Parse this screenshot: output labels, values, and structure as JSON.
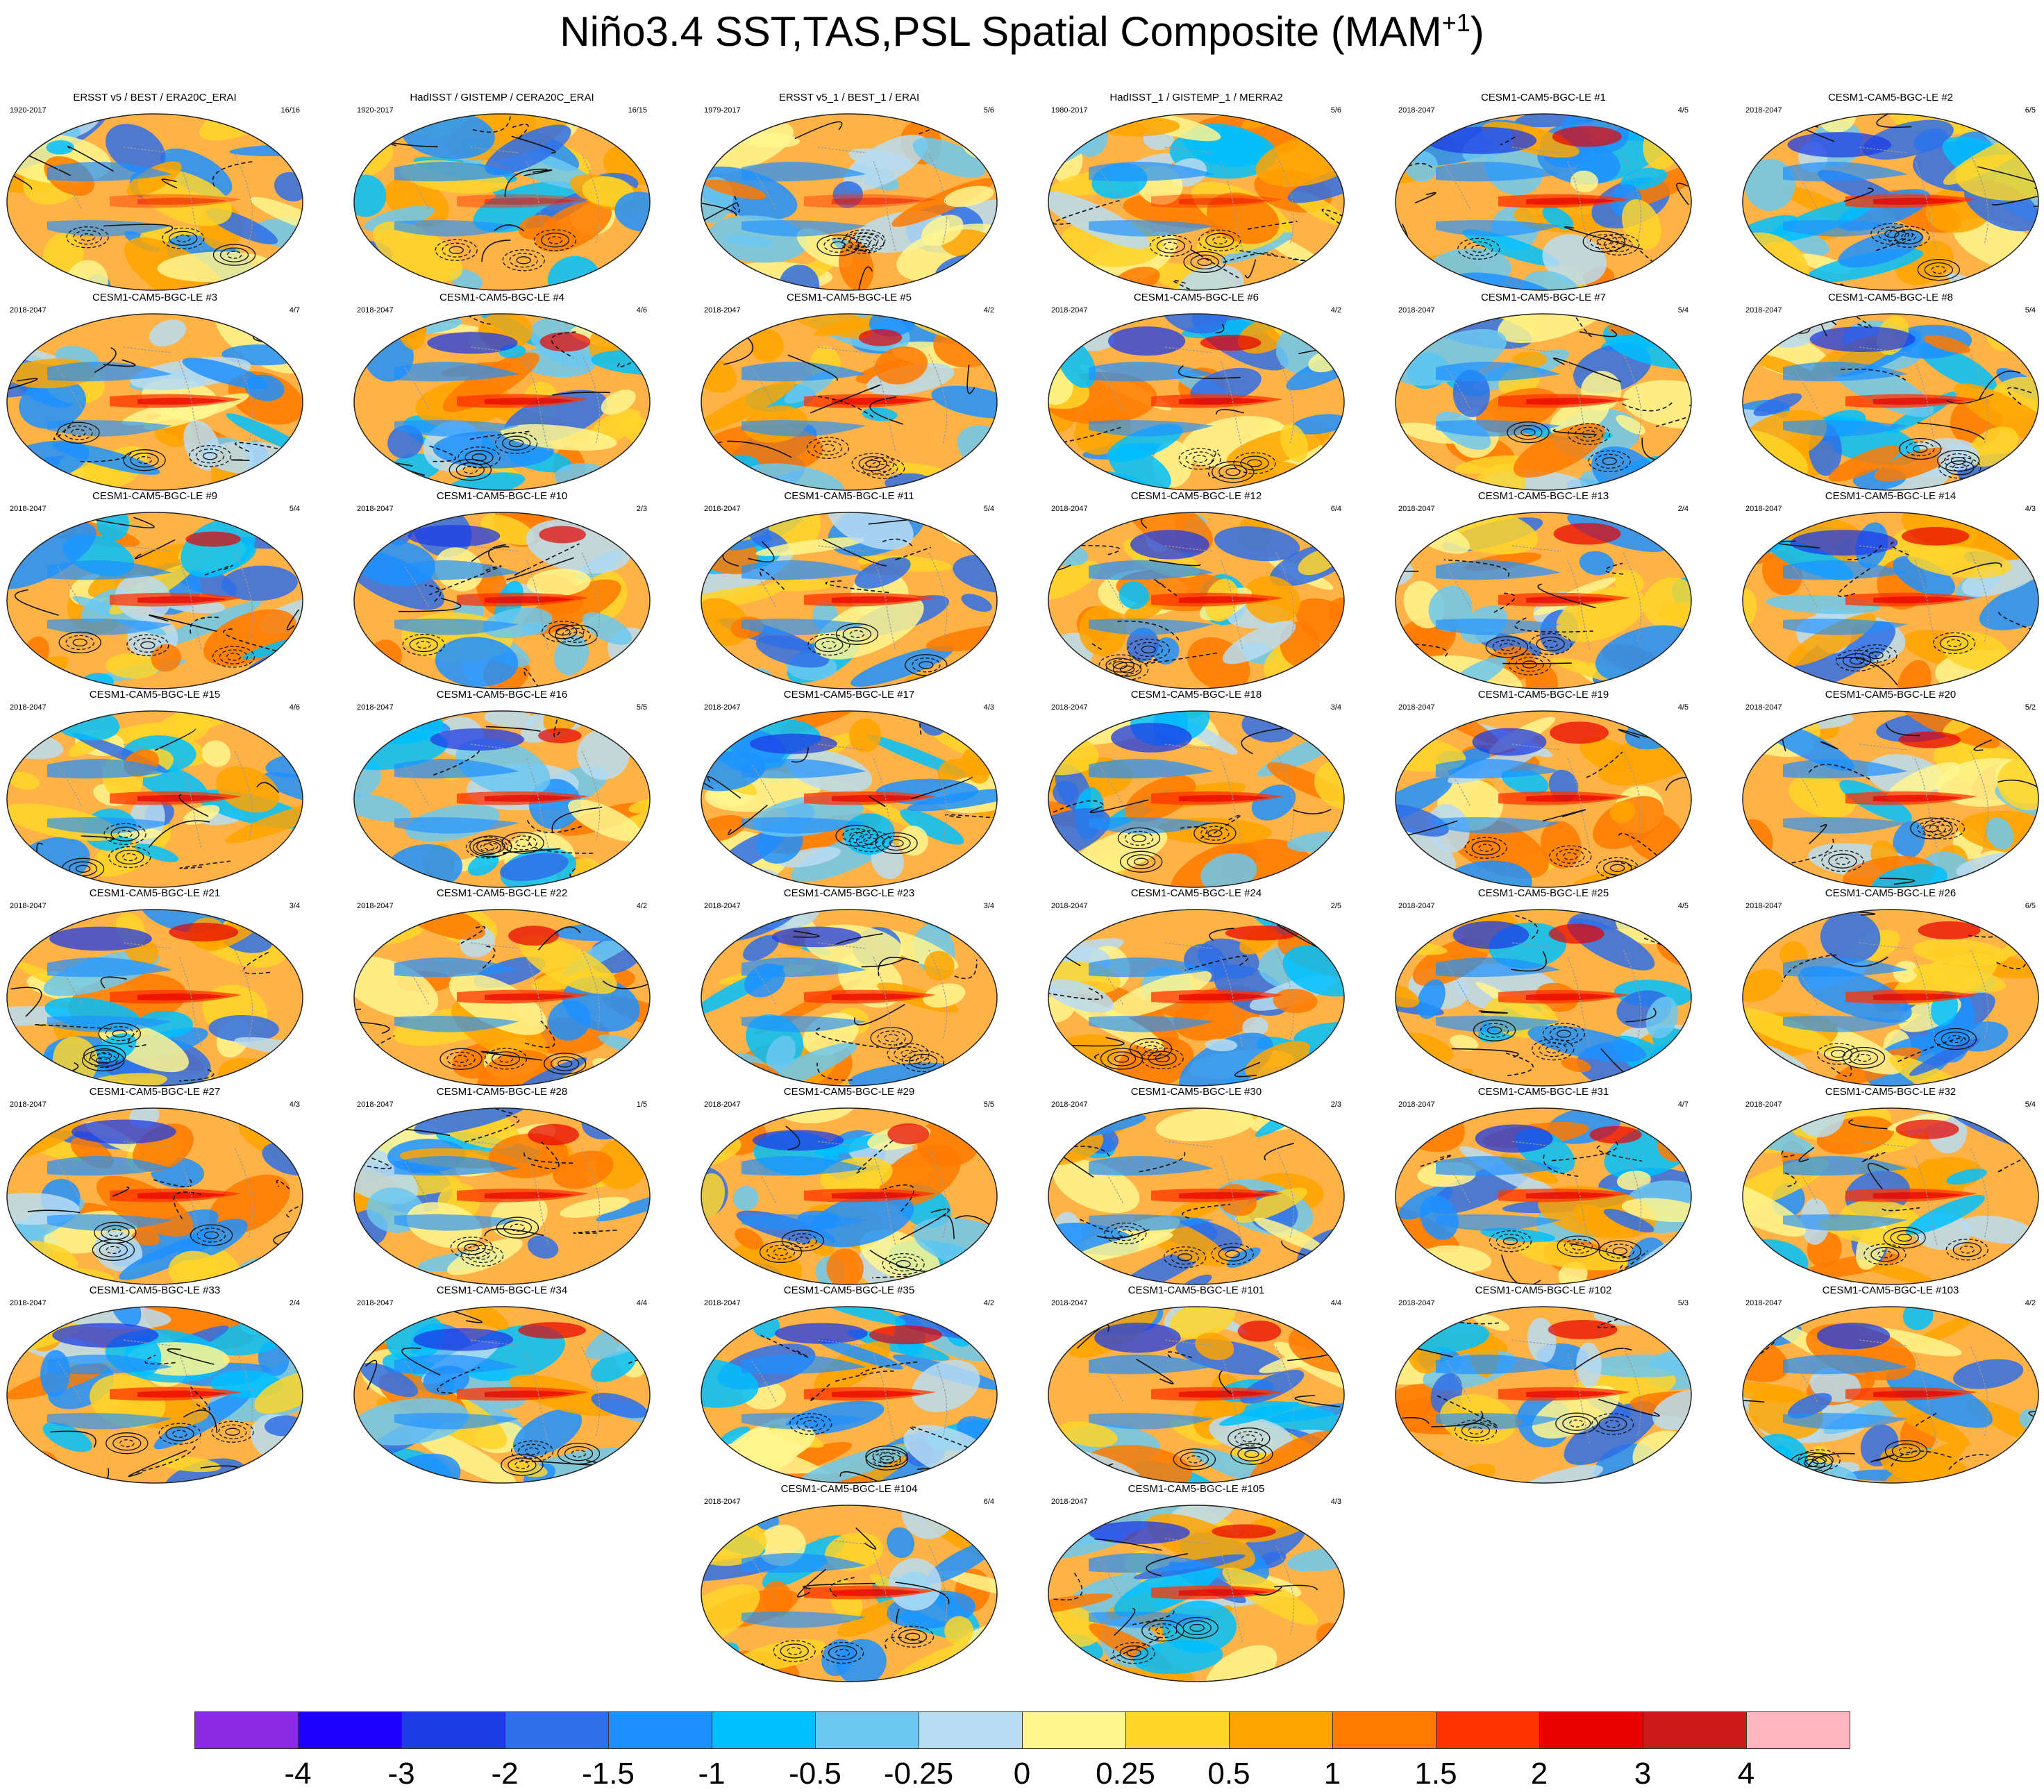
{
  "title": {
    "main": "Niño3.4 SST,TAS,PSL Spatial Composite (MAM",
    "superscript": "+1",
    "close": ")"
  },
  "panels": [
    {
      "title": "ERSST v5 / BEST / ERA20C_ERAI",
      "period": "1920-2017",
      "count": "16/16"
    },
    {
      "title": "HadISST / GISTEMP / CERA20C_ERAI",
      "period": "1920-2017",
      "count": "16/15"
    },
    {
      "title": "ERSST v5_1 / BEST_1 / ERAI",
      "period": "1979-2017",
      "count": "5/6"
    },
    {
      "title": "HadISST_1 / GISTEMP_1 / MERRA2",
      "period": "1980-2017",
      "count": "5/6"
    },
    {
      "title": "CESM1-CAM5-BGC-LE #1",
      "period": "2018-2047",
      "count": "4/5"
    },
    {
      "title": "CESM1-CAM5-BGC-LE #2",
      "period": "2018-2047",
      "count": "6/5"
    },
    {
      "title": "CESM1-CAM5-BGC-LE #3",
      "period": "2018-2047",
      "count": "4/7"
    },
    {
      "title": "CESM1-CAM5-BGC-LE #4",
      "period": "2018-2047",
      "count": "4/6"
    },
    {
      "title": "CESM1-CAM5-BGC-LE #5",
      "period": "2018-2047",
      "count": "4/2"
    },
    {
      "title": "CESM1-CAM5-BGC-LE #6",
      "period": "2018-2047",
      "count": "4/2"
    },
    {
      "title": "CESM1-CAM5-BGC-LE #7",
      "period": "2018-2047",
      "count": "5/4"
    },
    {
      "title": "CESM1-CAM5-BGC-LE #8",
      "period": "2018-2047",
      "count": "5/4"
    },
    {
      "title": "CESM1-CAM5-BGC-LE #9",
      "period": "2018-2047",
      "count": "5/4"
    },
    {
      "title": "CESM1-CAM5-BGC-LE #10",
      "period": "2018-2047",
      "count": "2/3"
    },
    {
      "title": "CESM1-CAM5-BGC-LE #11",
      "period": "2018-2047",
      "count": "5/4"
    },
    {
      "title": "CESM1-CAM5-BGC-LE #12",
      "period": "2018-2047",
      "count": "6/4"
    },
    {
      "title": "CESM1-CAM5-BGC-LE #13",
      "period": "2018-2047",
      "count": "2/4"
    },
    {
      "title": "CESM1-CAM5-BGC-LE #14",
      "period": "2018-2047",
      "count": "4/3"
    },
    {
      "title": "CESM1-CAM5-BGC-LE #15",
      "period": "2018-2047",
      "count": "4/6"
    },
    {
      "title": "CESM1-CAM5-BGC-LE #16",
      "period": "2018-2047",
      "count": "5/5"
    },
    {
      "title": "CESM1-CAM5-BGC-LE #17",
      "period": "2018-2047",
      "count": "4/3"
    },
    {
      "title": "CESM1-CAM5-BGC-LE #18",
      "period": "2018-2047",
      "count": "3/4"
    },
    {
      "title": "CESM1-CAM5-BGC-LE #19",
      "period": "2018-2047",
      "count": "4/5"
    },
    {
      "title": "CESM1-CAM5-BGC-LE #20",
      "period": "2018-2047",
      "count": "5/2"
    },
    {
      "title": "CESM1-CAM5-BGC-LE #21",
      "period": "2018-2047",
      "count": "3/4"
    },
    {
      "title": "CESM1-CAM5-BGC-LE #22",
      "period": "2018-2047",
      "count": "4/2"
    },
    {
      "title": "CESM1-CAM5-BGC-LE #23",
      "period": "2018-2047",
      "count": "3/4"
    },
    {
      "title": "CESM1-CAM5-BGC-LE #24",
      "period": "2018-2047",
      "count": "2/5"
    },
    {
      "title": "CESM1-CAM5-BGC-LE #25",
      "period": "2018-2047",
      "count": "4/5"
    },
    {
      "title": "CESM1-CAM5-BGC-LE #26",
      "period": "2018-2047",
      "count": "6/5"
    },
    {
      "title": "CESM1-CAM5-BGC-LE #27",
      "period": "2018-2047",
      "count": "4/3"
    },
    {
      "title": "CESM1-CAM5-BGC-LE #28",
      "period": "2018-2047",
      "count": "1/5"
    },
    {
      "title": "CESM1-CAM5-BGC-LE #29",
      "period": "2018-2047",
      "count": "5/5"
    },
    {
      "title": "CESM1-CAM5-BGC-LE #30",
      "period": "2018-2047",
      "count": "2/3"
    },
    {
      "title": "CESM1-CAM5-BGC-LE #31",
      "period": "2018-2047",
      "count": "4/7"
    },
    {
      "title": "CESM1-CAM5-BGC-LE #32",
      "period": "2018-2047",
      "count": "5/4"
    },
    {
      "title": "CESM1-CAM5-BGC-LE #33",
      "period": "2018-2047",
      "count": "2/4"
    },
    {
      "title": "CESM1-CAM5-BGC-LE #34",
      "period": "2018-2047",
      "count": "4/4"
    },
    {
      "title": "CESM1-CAM5-BGC-LE #35",
      "period": "2018-2047",
      "count": "4/2"
    },
    {
      "title": "CESM1-CAM5-BGC-LE #101",
      "period": "2018-2047",
      "count": "4/4"
    },
    {
      "title": "CESM1-CAM5-BGC-LE #102",
      "period": "2018-2047",
      "count": "5/3"
    },
    {
      "title": "CESM1-CAM5-BGC-LE #103",
      "period": "2018-2047",
      "count": "4/2"
    },
    {
      "title": "CESM1-CAM5-BGC-LE #104",
      "period": "2018-2047",
      "count": "6/4"
    },
    {
      "title": "CESM1-CAM5-BGC-LE #105",
      "period": "2018-2047",
      "count": "4/3"
    }
  ],
  "colorbar": {
    "colors": [
      "#8a2be2",
      "#1e00ff",
      "#1e3ce6",
      "#2f6fe8",
      "#1e90ff",
      "#00bfff",
      "#6cc8f0",
      "#b8dcf2",
      "#fff68f",
      "#ffd52a",
      "#ffa500",
      "#ff7a00",
      "#ff3300",
      "#e60000",
      "#cc1a1a",
      "#ffb6c1"
    ],
    "labels": [
      "-4",
      "-3",
      "-2",
      "-1.5",
      "-1",
      "-0.5",
      "-0.25",
      "0",
      "0.25",
      "0.5",
      "1",
      "1.5",
      "2",
      "3",
      "4"
    ]
  }
}
